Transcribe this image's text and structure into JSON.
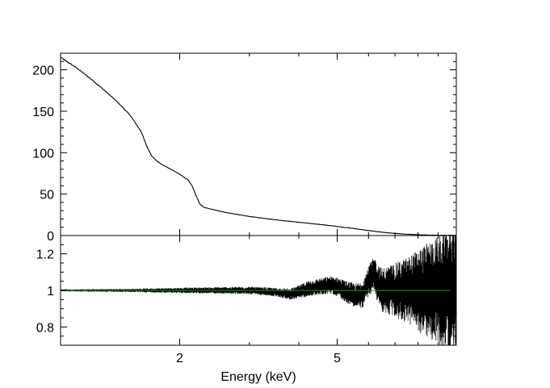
{
  "chart_data": [
    {
      "type": "line",
      "panel": "top",
      "xlabel": "",
      "ylabel": "",
      "title": "",
      "x_scale": "log",
      "xlim": [
        1.0,
        10.0
      ],
      "ylim": [
        0,
        220
      ],
      "ytick_labels": [
        "0",
        "50",
        "100",
        "150",
        "200"
      ],
      "yticks": [
        0,
        50,
        100,
        150,
        200
      ],
      "line_color": "#000000",
      "series": [
        {
          "x": [
            1.0,
            1.1,
            1.2,
            1.3,
            1.4,
            1.5,
            1.6,
            1.65,
            1.7,
            1.75,
            1.8,
            1.9,
            2.0,
            2.1,
            2.15,
            2.2,
            2.25,
            2.3,
            2.4,
            2.6,
            3.0,
            3.5,
            4.0,
            4.5,
            5.0,
            5.5,
            6.0,
            6.5,
            7.0,
            7.5,
            8.0,
            8.5,
            9.0,
            10.0
          ],
          "y": [
            215,
            202,
            188,
            174,
            160,
            145,
            125,
            108,
            96,
            90,
            86,
            80,
            74,
            67,
            60,
            48,
            38,
            34,
            32,
            28,
            23,
            19,
            16,
            13.5,
            11,
            8.5,
            6,
            4,
            2.5,
            1.5,
            1,
            0.5,
            0.3,
            0.2
          ]
        }
      ]
    },
    {
      "type": "line",
      "panel": "bottom",
      "xlabel": "Energy (keV)",
      "ylabel": "",
      "title": "",
      "x_scale": "log",
      "xlim": [
        1.0,
        10.0
      ],
      "ylim": [
        0.7,
        1.3
      ],
      "ytick_labels": [
        "0.8",
        "1",
        "1.2"
      ],
      "yticks": [
        0.8,
        1.0,
        1.2
      ],
      "xtick_labels": [
        "2",
        "5"
      ],
      "xticks": [
        2,
        5
      ],
      "reference_line": {
        "y": 1.0,
        "color": "#1a9a1a"
      },
      "data_color": "#000000",
      "series": [
        {
          "x": [
            1.0,
            1.5,
            2.0,
            2.5,
            3.0,
            3.5,
            3.8,
            4.0,
            4.2,
            4.5,
            4.8,
            5.0,
            5.3,
            5.6,
            5.8,
            6.0,
            6.2,
            6.3,
            6.5,
            7.0,
            7.5,
            8.0,
            9.0,
            10.0
          ],
          "y": [
            1.0,
            1.0,
            1.0,
            1.0,
            1.0,
            0.99,
            0.98,
            0.99,
            1.01,
            1.02,
            1.03,
            1.02,
            0.99,
            0.97,
            0.98,
            1.05,
            1.09,
            1.05,
            1.0,
            1.0,
            1.0,
            1.0,
            1.0,
            1.0
          ],
          "scatter_amplitude": [
            0.004,
            0.006,
            0.01,
            0.012,
            0.014,
            0.016,
            0.02,
            0.024,
            0.028,
            0.03,
            0.032,
            0.035,
            0.04,
            0.045,
            0.05,
            0.055,
            0.065,
            0.07,
            0.08,
            0.1,
            0.12,
            0.15,
            0.2,
            0.25
          ]
        }
      ]
    }
  ]
}
